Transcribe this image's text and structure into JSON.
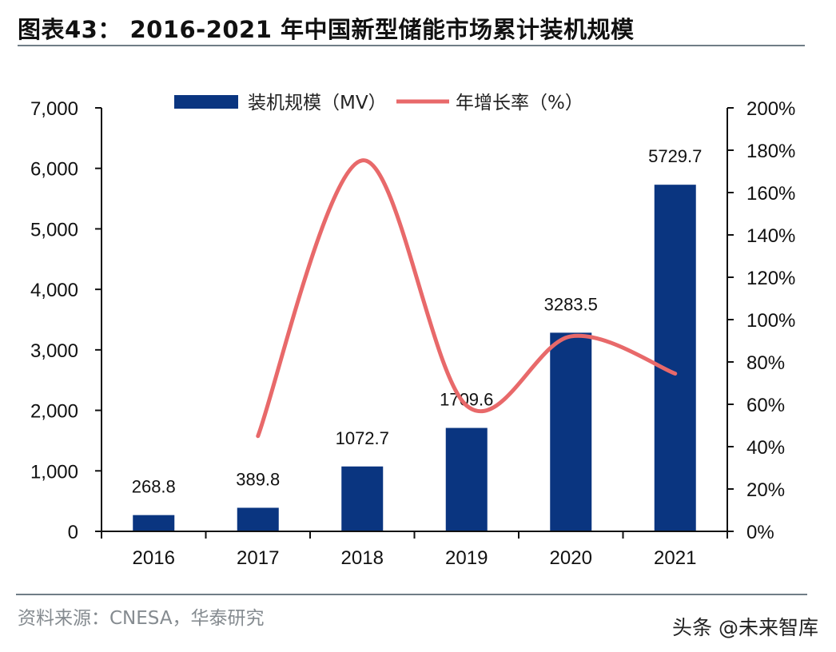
{
  "header": {
    "title": "图表43： 2016-2021 年中国新型储能市场累计装机规模"
  },
  "footer": {
    "source": "资料来源：CNESA，华泰研究",
    "watermark": "头条 @未来智库"
  },
  "colors": {
    "bar": "#0a3580",
    "line": "#e8696a",
    "axis": "#111111"
  },
  "chart_data": {
    "type": "bar",
    "title": "2016-2021 年中国新型储能市场累计装机规模",
    "categories": [
      "2016",
      "2017",
      "2018",
      "2019",
      "2020",
      "2021"
    ],
    "series": [
      {
        "name": "装机规模（MV）",
        "type": "bar",
        "axis": "left",
        "values": [
          268.8,
          389.8,
          1072.7,
          1709.6,
          3283.5,
          5729.7
        ],
        "data_labels": [
          "268.8",
          "389.8",
          "1072.7",
          "1709.6",
          "3283.5",
          "5729.7"
        ]
      },
      {
        "name": "年增长率（%）",
        "type": "line",
        "smooth": true,
        "axis": "right",
        "values": [
          null,
          45.0,
          175.2,
          59.4,
          92.1,
          74.5
        ]
      }
    ],
    "legend": [
      "装机规模（MV）",
      "年增长率（%）"
    ],
    "legend_position": "top-center",
    "y_left": {
      "lim": [
        0,
        7000
      ],
      "ticks": [
        0,
        1000,
        2000,
        3000,
        4000,
        5000,
        6000,
        7000
      ],
      "tick_labels": [
        "0",
        "1,000",
        "2,000",
        "3,000",
        "4,000",
        "5,000",
        "6,000",
        "7,000"
      ]
    },
    "y_right": {
      "lim": [
        0,
        200
      ],
      "ticks": [
        0,
        20,
        40,
        60,
        80,
        100,
        120,
        140,
        160,
        180,
        200
      ],
      "tick_labels": [
        "0%",
        "20%",
        "40%",
        "60%",
        "80%",
        "100%",
        "120%",
        "140%",
        "160%",
        "180%",
        "200%"
      ]
    },
    "xlabel": "",
    "ylabel": "",
    "grid": false
  }
}
